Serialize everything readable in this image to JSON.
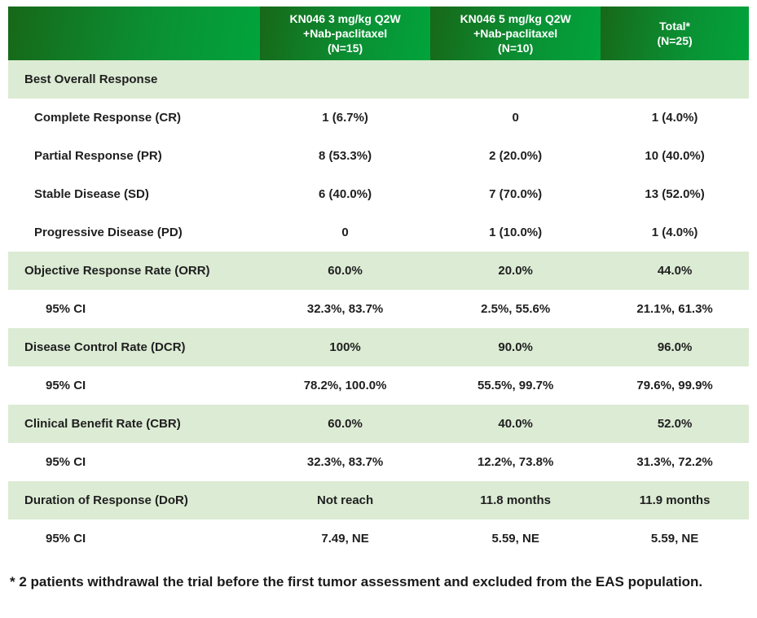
{
  "chart_data": {
    "type": "table",
    "columns": [
      "",
      "KN046 3 mg/kg Q2W\n+Nab-paclitaxel\n(N=15)",
      "KN046 5 mg/kg Q2W\n+Nab-paclitaxel\n(N=10)",
      "Total*\n(N=25)"
    ],
    "rows": [
      {
        "label": "Best Overall Response",
        "values": [
          "",
          "",
          ""
        ]
      },
      {
        "label": "Complete Response (CR)",
        "values": [
          "1 (6.7%)",
          "0",
          "1 (4.0%)"
        ]
      },
      {
        "label": "Partial Response (PR)",
        "values": [
          "8 (53.3%)",
          "2 (20.0%)",
          "10 (40.0%)"
        ]
      },
      {
        "label": "Stable Disease (SD)",
        "values": [
          "6 (40.0%)",
          "7 (70.0%)",
          "13 (52.0%)"
        ]
      },
      {
        "label": "Progressive Disease (PD)",
        "values": [
          "0",
          "1 (10.0%)",
          "1 (4.0%)"
        ]
      },
      {
        "label": "Objective Response Rate (ORR)",
        "values": [
          "60.0%",
          "20.0%",
          "44.0%"
        ]
      },
      {
        "label": "95% CI",
        "values": [
          "32.3%, 83.7%",
          "2.5%, 55.6%",
          "21.1%, 61.3%"
        ]
      },
      {
        "label": "Disease Control Rate (DCR)",
        "values": [
          "100%",
          "90.0%",
          "96.0%"
        ]
      },
      {
        "label": "95% CI",
        "values": [
          "78.2%, 100.0%",
          "55.5%, 99.7%",
          "79.6%, 99.9%"
        ]
      },
      {
        "label": "Clinical Benefit Rate (CBR)",
        "values": [
          "60.0%",
          "40.0%",
          "52.0%"
        ]
      },
      {
        "label": "95% CI",
        "values": [
          "32.3%, 83.7%",
          "12.2%, 73.8%",
          "31.3%, 72.2%"
        ]
      },
      {
        "label": "Duration of Response (DoR)",
        "values": [
          "Not reach",
          "11.8 months",
          "11.9 months"
        ]
      },
      {
        "label": "95% CI",
        "values": [
          "7.49, NE",
          "5.59, NE",
          "5.59, NE"
        ]
      }
    ],
    "footnote": "* 2 patients withdrawal the trial before the first tumor assessment and excluded from the EAS population."
  },
  "colors": {
    "header_gradient_left": "#176818",
    "header_gradient_right": "#01a43c",
    "header_text": "#ffffff",
    "shaded_row": "#dcebd4",
    "body_text": "#1f1f1f"
  }
}
